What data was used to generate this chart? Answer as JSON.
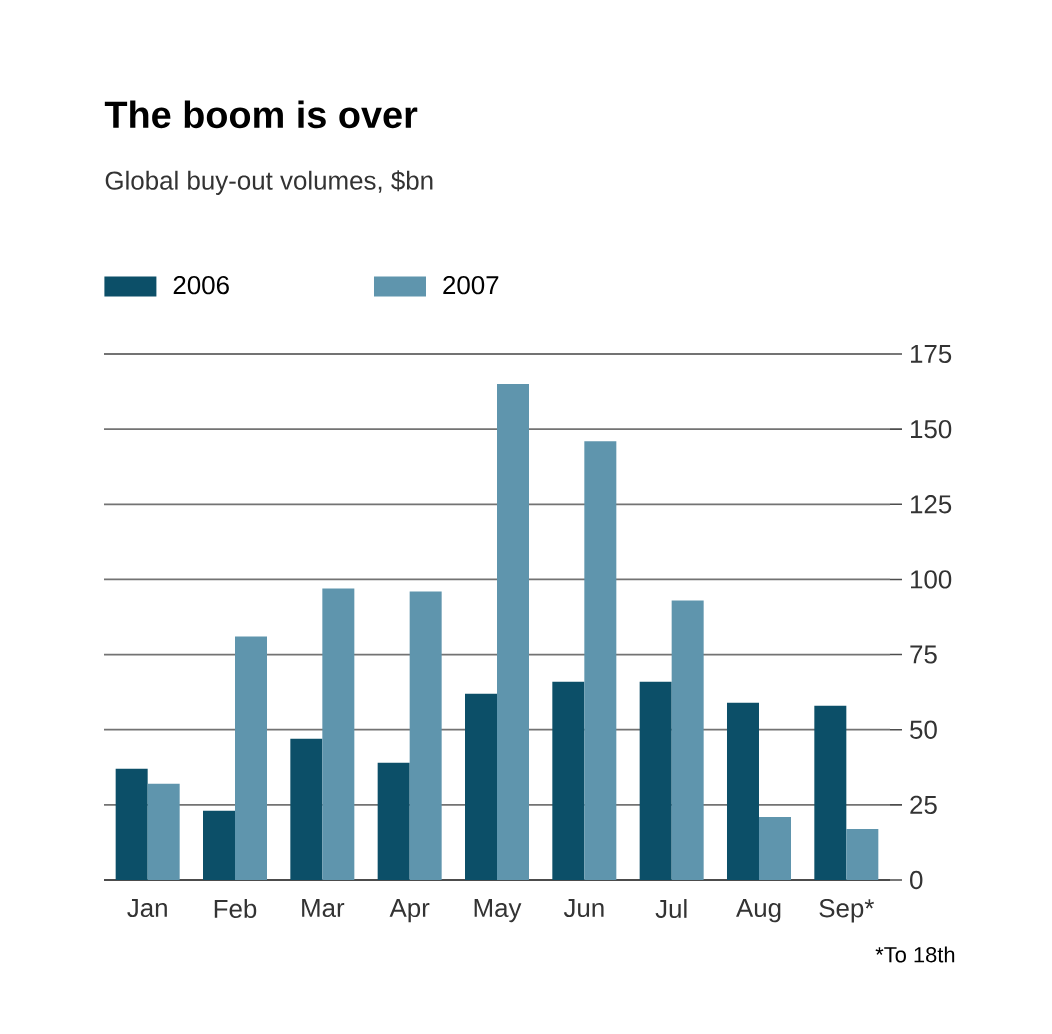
{
  "chart_data": {
    "type": "bar",
    "title": "The boom is over",
    "subtitle": "Global buy-out volumes, $bn",
    "categories": [
      "Jan",
      "Feb",
      "Mar",
      "Apr",
      "May",
      "Jun",
      "Jul",
      "Aug",
      "Sep*"
    ],
    "series": [
      {
        "name": "2006",
        "color": "#0c4f68",
        "values": [
          37,
          23,
          47,
          39,
          62,
          66,
          66,
          59,
          58
        ]
      },
      {
        "name": "2007",
        "color": "#5f95ad",
        "values": [
          32,
          81,
          97,
          96,
          165,
          146,
          93,
          21,
          17
        ]
      }
    ],
    "ylim": [
      0,
      175
    ],
    "yticks": [
      0,
      25,
      50,
      75,
      100,
      125,
      150,
      175
    ],
    "grid": "y",
    "legend": "top left",
    "annotations": [
      "*To 18th"
    ]
  }
}
